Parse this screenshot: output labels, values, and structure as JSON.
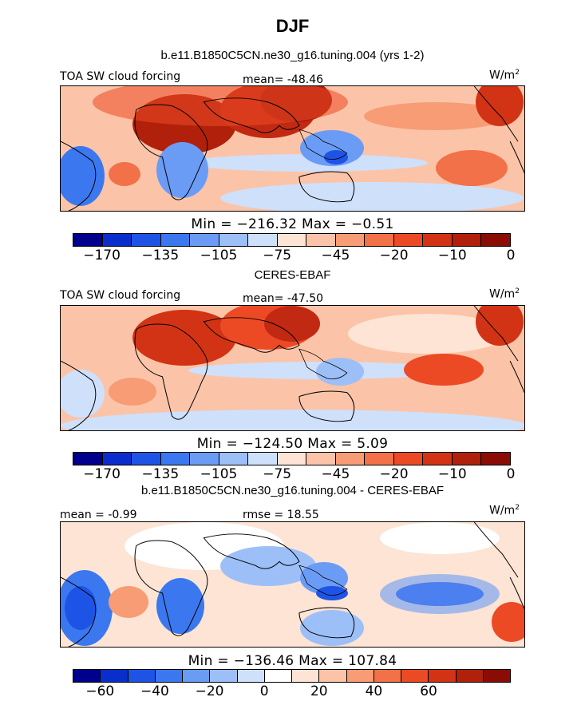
{
  "figure": {
    "title": "DJF",
    "model_title": "b.e11.B1850C5CN.ne30_g16.tuning.004 (yrs 1-2)",
    "obs_title": "CERES-EBAF",
    "diff_title": "b.e11.B1850C5CN.ne30_g16.tuning.004 - CERES-EBAF"
  },
  "chart_data": [
    {
      "type": "heatmap",
      "panel": "model",
      "left_label": "TOA SW cloud forcing",
      "mean_label": "mean= -48.46",
      "units": "W/m",
      "units_exp": "2",
      "min_max_label": "Min = −216.32 Max =  −0.51",
      "colorbar": {
        "colors": [
          "#00008c",
          "#0a2ecc",
          "#1e54e6",
          "#3b78f0",
          "#6b9cf5",
          "#9dbff8",
          "#cfe0fb",
          "#fde4d4",
          "#fbc4a8",
          "#f79c74",
          "#f37148",
          "#ec4a25",
          "#d23315",
          "#b0200b",
          "#8a0c05"
        ],
        "tick_labels": [
          "-170",
          "-135",
          "-105",
          "-75",
          "-45",
          "-20",
          "-10",
          "0"
        ]
      },
      "stats": {
        "mean": -48.46,
        "min": -216.32,
        "max": -0.51
      }
    },
    {
      "type": "heatmap",
      "panel": "observations",
      "left_label": "TOA SW cloud forcing",
      "mean_label": "mean= -47.50",
      "units": "W/m",
      "units_exp": "2",
      "min_max_label": "Min = −124.50 Max =    5.09",
      "colorbar": {
        "colors": [
          "#00008c",
          "#0a2ecc",
          "#1e54e6",
          "#3b78f0",
          "#6b9cf5",
          "#9dbff8",
          "#cfe0fb",
          "#fde4d4",
          "#fbc4a8",
          "#f79c74",
          "#f37148",
          "#ec4a25",
          "#d23315",
          "#b0200b",
          "#8a0c05"
        ],
        "tick_labels": [
          "-170",
          "-135",
          "-105",
          "-75",
          "-45",
          "-20",
          "-10",
          "0"
        ]
      },
      "stats": {
        "mean": -47.5,
        "min": -124.5,
        "max": 5.09
      }
    },
    {
      "type": "heatmap",
      "panel": "difference",
      "mean_label": "mean =  -0.99",
      "rmse_label": "rmse =  18.55",
      "units": "W/m",
      "units_exp": "2",
      "min_max_label": "Min = −136.46 Max = 107.84",
      "colorbar": {
        "colors": [
          "#00008c",
          "#0a2ecc",
          "#1e54e6",
          "#3b78f0",
          "#6b9cf5",
          "#9dbff8",
          "#cfe0fb",
          "#ffffff",
          "#fde4d4",
          "#fbc4a8",
          "#f79c74",
          "#f37148",
          "#ec4a25",
          "#d23315",
          "#b0200b",
          "#8a0c05"
        ],
        "tick_labels": [
          "-60",
          "-40",
          "-20",
          "0",
          "20",
          "40",
          "60"
        ]
      },
      "stats": {
        "mean": -0.99,
        "rmse": 18.55,
        "min": -136.46,
        "max": 107.84
      }
    }
  ]
}
